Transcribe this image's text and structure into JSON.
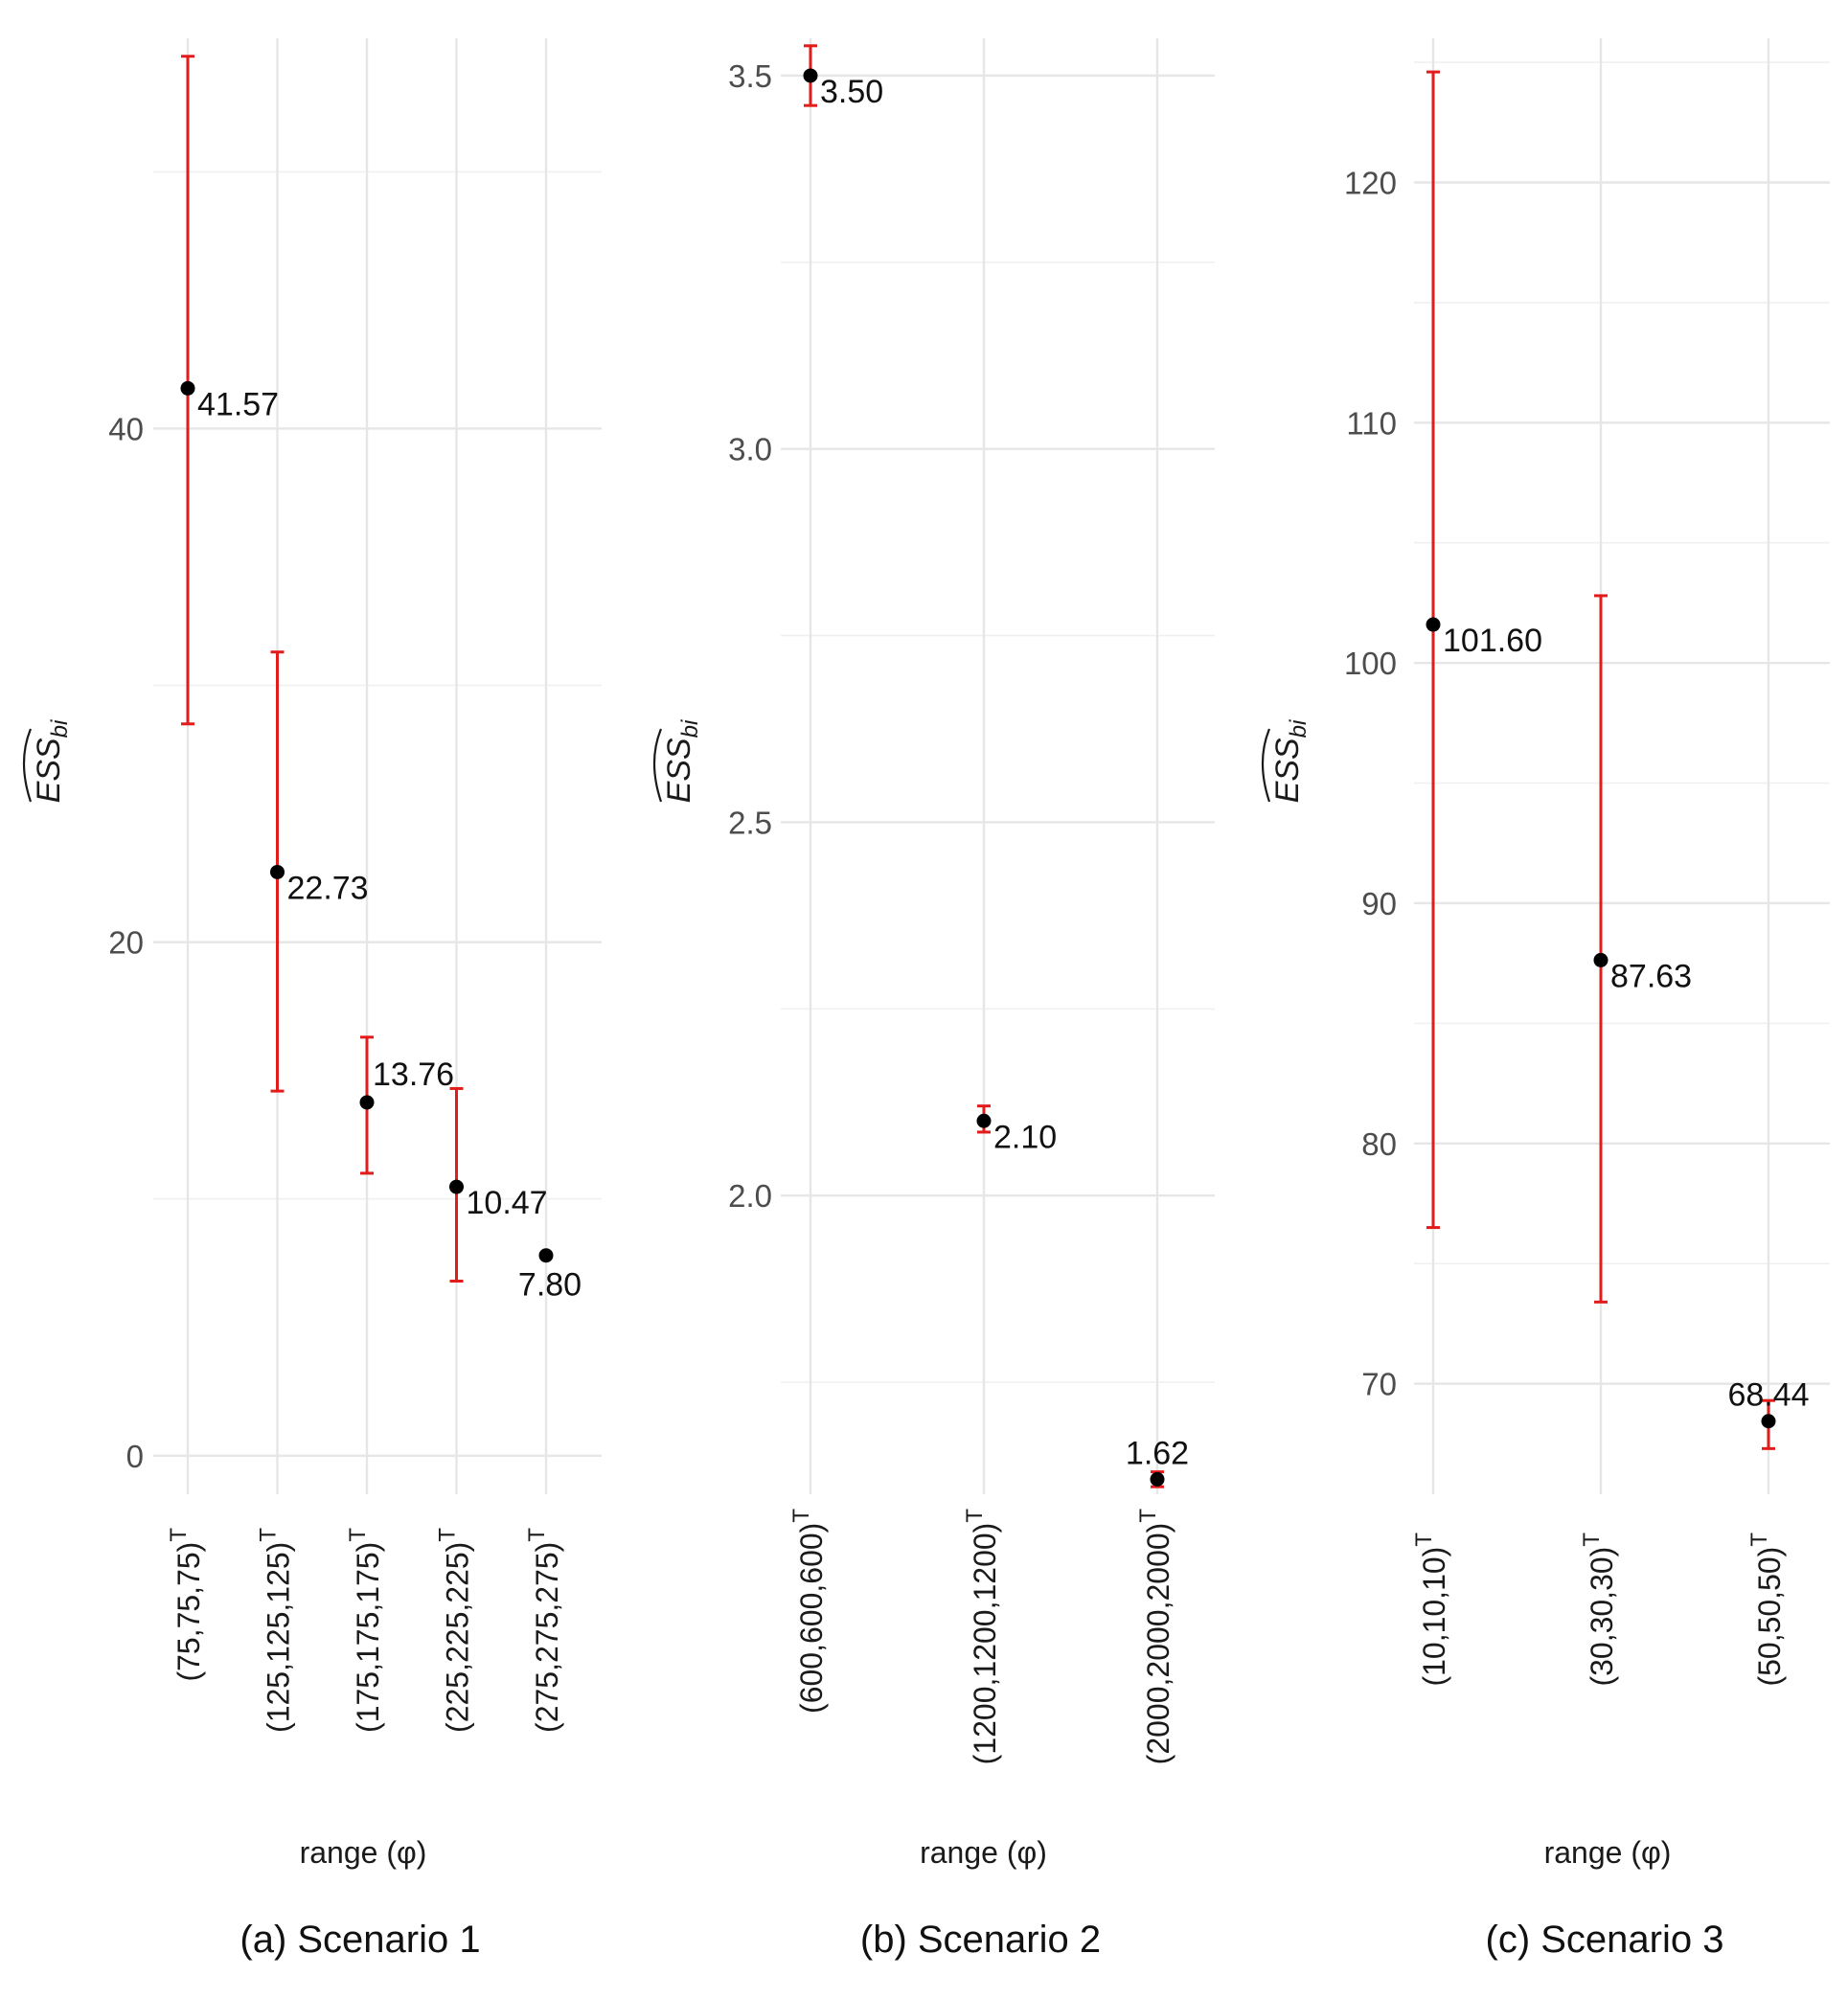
{
  "colors": {
    "errorbar": "#e21b1b",
    "point": "#000000",
    "grid": "#e6e6e6"
  },
  "chart_data": [
    {
      "type": "scatter",
      "caption": "(a) Scenario 1",
      "xlabel": "range (φ)",
      "ylabel": "ESS",
      "ylabel_sub": "bi",
      "categories": [
        "(75,75,75)",
        "(125,125,125)",
        "(175,175,175)",
        "(225,225,225)",
        "(275,275,275)"
      ],
      "category_superscript": "T",
      "values": [
        41.57,
        22.73,
        13.76,
        10.47,
        7.8
      ],
      "value_labels": [
        "41.57",
        "22.73",
        "13.76",
        "10.47",
        "7.80"
      ],
      "error_low": [
        28.5,
        14.2,
        11.0,
        6.8,
        7.8
      ],
      "error_high": [
        54.5,
        31.3,
        16.3,
        14.3,
        7.8
      ],
      "label_position": [
        "right",
        "right",
        "above-right",
        "right",
        "below"
      ],
      "ylim": [
        -1.5,
        55.2
      ],
      "yticks": [
        0,
        20,
        40
      ],
      "ytick_labels": [
        "0",
        "20",
        "40"
      ],
      "grid": true
    },
    {
      "type": "scatter",
      "caption": "(b) Scenario 2",
      "xlabel": "range (φ)",
      "ylabel": "ESS",
      "ylabel_sub": "bi",
      "categories": [
        "(600,600,600)",
        "(1200,1200,1200)",
        "(2000,2000,2000)"
      ],
      "category_superscript": "T",
      "values": [
        3.5,
        2.1,
        1.62
      ],
      "value_labels": [
        "3.50",
        "2.10",
        "1.62"
      ],
      "error_low": [
        3.46,
        2.085,
        1.61
      ],
      "error_high": [
        3.54,
        2.12,
        1.63
      ],
      "label_position": [
        "right",
        "right",
        "above"
      ],
      "ylim": [
        1.6,
        3.55
      ],
      "yticks": [
        2.0,
        2.5,
        3.0,
        3.5
      ],
      "ytick_labels": [
        "2.0",
        "2.5",
        "3.0",
        "3.5"
      ],
      "grid": true
    },
    {
      "type": "scatter",
      "caption": "(c) Scenario 3",
      "xlabel": "range (φ)",
      "ylabel": "ESS",
      "ylabel_sub": "bi",
      "categories": [
        "(10,10,10)",
        "(30,30,30)",
        "(50,50,50)"
      ],
      "category_superscript": "T",
      "values": [
        101.6,
        87.63,
        68.44
      ],
      "value_labels": [
        "101.60",
        "87.63",
        "68.44"
      ],
      "error_low": [
        76.5,
        73.4,
        67.3
      ],
      "error_high": [
        124.6,
        102.8,
        69.3
      ],
      "label_position": [
        "right",
        "right",
        "above"
      ],
      "ylim": [
        65.4,
        126
      ],
      "yticks": [
        70,
        80,
        90,
        100,
        110,
        120
      ],
      "ytick_labels": [
        "70",
        "80",
        "90",
        "100",
        "110",
        "120"
      ],
      "grid": true
    }
  ]
}
